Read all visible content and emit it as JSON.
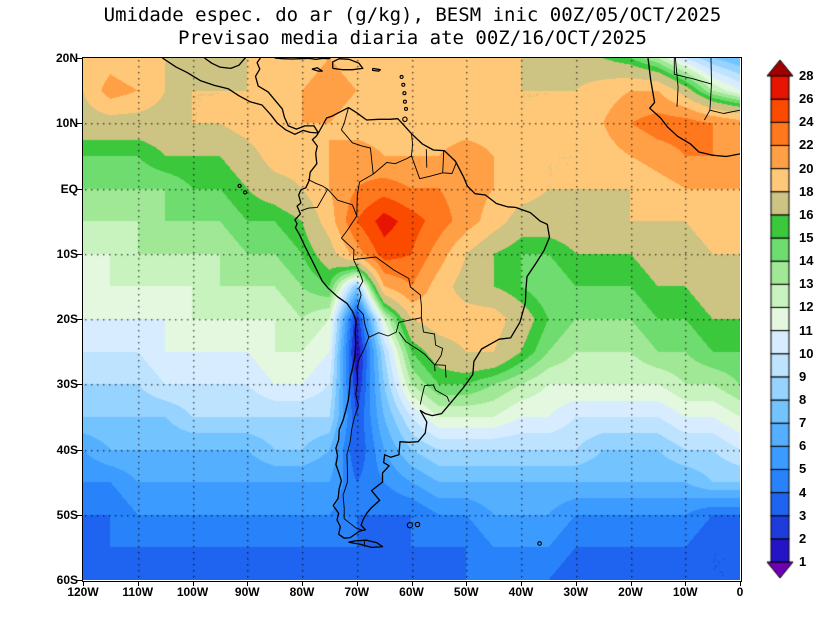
{
  "page": {
    "background": "#FFFFFF"
  },
  "title": {
    "line1": "Umidade espec. do ar (g/kg), BESM inic 00Z/05/OCT/2025",
    "line2": "Previsao media diaria ate 00Z/16/OCT/2025"
  },
  "chart_data": {
    "type": "heatmap",
    "title": "Umidade espec. do ar (g/kg), BESM inic 00Z/05/OCT/2025",
    "subtitle": "Previsao media diaria ate 00Z/16/OCT/2025",
    "units": "g/kg",
    "lon_range": [
      -120,
      0
    ],
    "lat_range": [
      -60,
      20
    ],
    "grid_lines": "dotted every 10 degrees",
    "x_ticks": [
      {
        "label": "120W",
        "lon": -120
      },
      {
        "label": "110W",
        "lon": -110
      },
      {
        "label": "100W",
        "lon": -100
      },
      {
        "label": "90W",
        "lon": -90
      },
      {
        "label": "80W",
        "lon": -80
      },
      {
        "label": "70W",
        "lon": -70
      },
      {
        "label": "60W",
        "lon": -60
      },
      {
        "label": "50W",
        "lon": -50
      },
      {
        "label": "40W",
        "lon": -40
      },
      {
        "label": "30W",
        "lon": -30
      },
      {
        "label": "20W",
        "lon": -20
      },
      {
        "label": "10W",
        "lon": -10
      },
      {
        "label": "0",
        "lon": 0
      }
    ],
    "y_ticks": [
      {
        "label": "20N",
        "lat": 20
      },
      {
        "label": "10N",
        "lat": 10
      },
      {
        "label": "EQ",
        "lat": 0
      },
      {
        "label": "10S",
        "lat": -10
      },
      {
        "label": "20S",
        "lat": -20
      },
      {
        "label": "30S",
        "lat": -30
      },
      {
        "label": "40S",
        "lat": -40
      },
      {
        "label": "50S",
        "lat": -50
      },
      {
        "label": "60S",
        "lat": -60
      }
    ],
    "colorbar": {
      "labels_top_to_bottom": [
        "28",
        "26",
        "24",
        "22",
        "20",
        "18",
        "16",
        "15",
        "14",
        "13",
        "12",
        "11",
        "10",
        "9",
        "8",
        "7",
        "6",
        "5",
        "4",
        "3",
        "2",
        "1"
      ],
      "levels": [
        1,
        2,
        3,
        4,
        5,
        6,
        7,
        8,
        9,
        10,
        11,
        12,
        13,
        14,
        15,
        16,
        18,
        20,
        22,
        24,
        26,
        28
      ],
      "band_colors": [
        "#2414C8",
        "#1E3CDC",
        "#1E64F0",
        "#2882FA",
        "#3C9BFF",
        "#55AFFF",
        "#73C3FF",
        "#96D3FF",
        "#BEE3FF",
        "#D7EDFF",
        "#E4F8E0",
        "#C8F2BE",
        "#A0E896",
        "#6EDC6E",
        "#3CC83C",
        "#CDC382",
        "#FFC878",
        "#FFA046",
        "#FF781E",
        "#FA4B00",
        "#E61400"
      ],
      "below_color": "#6E00B4",
      "above_color": "#A00000"
    },
    "grid": {
      "lons": [
        -120,
        -115,
        -110,
        -105,
        -100,
        -95,
        -90,
        -85,
        -80,
        -75,
        -70,
        -65,
        -60,
        -55,
        -50,
        -45,
        -40,
        -35,
        -30,
        -25,
        -20,
        -15,
        -10,
        -5,
        0
      ],
      "lats": [
        20,
        15,
        10,
        5,
        0,
        -5,
        -10,
        -15,
        -20,
        -25,
        -30,
        -35,
        -40,
        -45,
        -50,
        -55,
        -60
      ],
      "values_g_per_kg": [
        [
          18,
          19,
          18,
          18,
          17,
          17,
          18,
          18,
          19,
          20,
          19,
          19,
          19,
          18,
          18,
          18,
          18,
          17,
          17,
          16,
          15,
          13,
          10,
          8,
          7
        ],
        [
          18,
          21,
          20,
          18,
          18,
          18,
          18,
          19,
          20,
          21,
          20,
          20,
          19,
          19,
          19,
          19,
          18,
          18,
          18,
          19,
          20,
          20,
          17,
          13,
          11
        ],
        [
          17,
          17,
          17,
          17,
          18,
          18,
          19,
          20,
          20,
          20,
          19,
          19,
          19,
          19,
          19,
          19,
          18,
          18,
          19,
          20,
          22,
          23,
          23,
          22,
          21
        ],
        [
          15,
          15,
          15,
          16,
          16,
          16,
          17,
          19,
          19,
          20,
          21,
          20,
          20,
          20,
          21,
          20,
          19,
          18,
          18,
          19,
          20,
          21,
          22,
          22,
          22
        ],
        [
          14,
          14,
          14,
          14,
          15,
          15,
          16,
          17,
          18,
          20,
          22,
          23,
          22,
          22,
          21,
          20,
          19,
          18,
          18,
          18,
          18,
          19,
          20,
          20,
          20
        ],
        [
          13,
          13,
          13,
          14,
          14,
          14,
          15,
          15,
          16,
          19,
          24,
          27,
          25,
          23,
          21,
          19,
          17,
          17,
          17,
          17,
          18,
          18,
          18,
          19,
          19
        ],
        [
          12,
          12,
          13,
          13,
          13,
          13,
          14,
          14,
          15,
          17,
          21,
          25,
          24,
          21,
          18,
          16,
          15,
          15,
          16,
          16,
          16,
          17,
          17,
          18,
          18
        ],
        [
          11,
          12,
          12,
          12,
          12,
          13,
          13,
          13,
          14,
          15,
          8,
          20,
          22,
          19,
          17,
          16,
          15,
          14,
          15,
          15,
          15,
          16,
          16,
          17,
          17
        ],
        [
          11,
          11,
          11,
          11,
          12,
          12,
          12,
          12,
          13,
          12,
          2,
          12,
          18,
          19,
          19,
          19,
          17,
          15,
          14,
          14,
          14,
          15,
          15,
          16,
          16
        ],
        [
          10,
          10,
          10,
          11,
          11,
          11,
          11,
          12,
          12,
          11,
          1,
          9,
          15,
          17,
          18,
          18,
          16,
          14,
          13,
          13,
          13,
          14,
          14,
          15,
          15
        ],
        [
          9,
          9,
          9,
          10,
          10,
          10,
          10,
          11,
          11,
          10,
          2,
          8,
          13,
          15,
          15,
          14,
          13,
          12,
          12,
          12,
          12,
          12,
          13,
          13,
          14
        ],
        [
          8,
          8,
          8,
          8,
          9,
          9,
          9,
          9,
          9,
          9,
          3,
          7,
          10,
          12,
          12,
          12,
          11,
          11,
          10,
          10,
          10,
          10,
          11,
          11,
          12
        ],
        [
          6,
          7,
          7,
          7,
          7,
          7,
          7,
          8,
          8,
          7,
          3,
          6,
          8,
          9,
          9,
          9,
          9,
          9,
          9,
          8,
          8,
          8,
          9,
          9,
          10
        ],
        [
          5,
          5,
          6,
          6,
          6,
          6,
          6,
          6,
          6,
          6,
          4,
          5,
          6,
          7,
          7,
          7,
          7,
          7,
          7,
          7,
          7,
          7,
          7,
          8,
          8
        ],
        [
          4,
          4,
          5,
          5,
          5,
          5,
          5,
          5,
          5,
          5,
          4,
          4,
          4,
          5,
          5,
          6,
          6,
          6,
          5,
          5,
          5,
          5,
          5,
          4,
          4
        ],
        [
          3,
          4,
          4,
          4,
          4,
          4,
          4,
          4,
          4,
          4,
          4,
          3,
          4,
          4,
          4,
          5,
          5,
          5,
          4,
          4,
          4,
          4,
          4,
          3,
          3
        ],
        [
          3,
          3,
          3,
          3,
          3,
          3,
          3,
          3,
          3,
          3,
          3,
          3,
          3,
          3,
          4,
          4,
          4,
          4,
          3,
          3,
          3,
          3,
          3,
          3,
          3
        ]
      ]
    }
  }
}
